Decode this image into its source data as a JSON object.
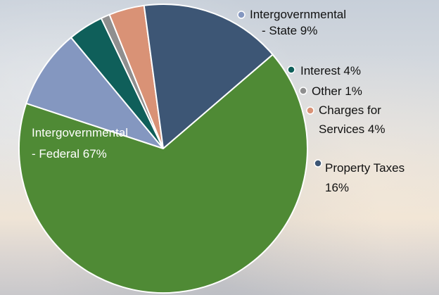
{
  "chart_data": {
    "type": "pie",
    "title": "",
    "slices": [
      {
        "key": "state",
        "label_lines": [
          "Intergovernmental",
          "- State 9%"
        ],
        "value": 9,
        "color": "#8497c0"
      },
      {
        "key": "interest",
        "label_lines": [
          "Interest 4%"
        ],
        "value": 4,
        "color": "#0f5f5a"
      },
      {
        "key": "other",
        "label_lines": [
          "Other 1%"
        ],
        "value": 1,
        "color": "#8f8f8f"
      },
      {
        "key": "charges",
        "label_lines": [
          "Charges for",
          "Services 4%"
        ],
        "value": 4,
        "color": "#d99276"
      },
      {
        "key": "property",
        "label_lines": [
          "Property Taxes",
          "16%"
        ],
        "value": 16,
        "color": "#3d5675"
      },
      {
        "key": "federal",
        "label_lines": [
          "Intergovernmental",
          "- Federal 67%"
        ],
        "value": 67,
        "color": "#4f8a35"
      }
    ]
  }
}
